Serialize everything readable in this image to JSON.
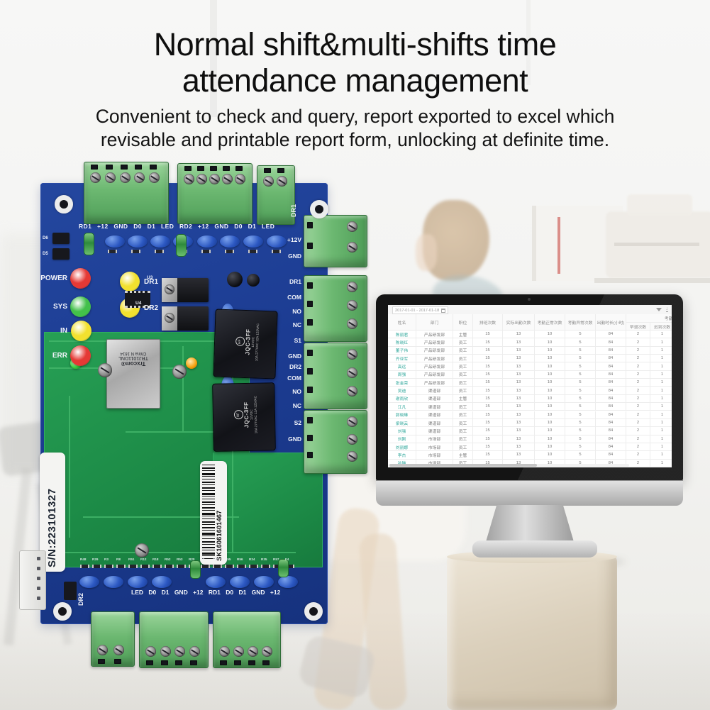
{
  "header": {
    "title_line1": "Normal shift&multi-shifts time",
    "title_line2": "attendance management",
    "subtitle_line1": "Convenient to check and query, report exported to excel which",
    "subtitle_line2": "revisable and printable report form, unlocking at definite time."
  },
  "board": {
    "status_leds": [
      {
        "label": "POWER",
        "color": "#e53935"
      },
      {
        "label": "SYS",
        "color": "#43c04a"
      },
      {
        "label": "IN",
        "color": "#f2e12f"
      },
      {
        "label": "ERR",
        "color": "#e53935"
      }
    ],
    "door_leds": [
      {
        "label": "DR1",
        "color": "#f2e12f"
      },
      {
        "label": "DR2",
        "color": "#f2e12f"
      }
    ],
    "silkscreen_top": "RD1 +12 GND D0 D1 LED RD2 +12 GND D0 D1 LED",
    "silkscreen_bottom": "LED D0 D1 GND +12 RD1 D0 D1 GND +12",
    "label_dr2_vertical": "DR2",
    "label_dr1_vertical": "DR1",
    "right_edge_labels": [
      "+12V",
      "GND",
      "DR1",
      "COM",
      "NO",
      "NC",
      "S1",
      "GND",
      "DR2",
      "COM",
      "NO",
      "NC",
      "S2",
      "GND"
    ],
    "ic_labels": [
      "U3",
      "U4"
    ],
    "jumper_labels": [
      "D6",
      "D5"
    ],
    "relay": {
      "brand": "HF",
      "model": "JQC-3FF",
      "spec1": "12VDC",
      "spec2": "10A 277VAC 12A 125VAC"
    },
    "ethernet": {
      "brand": "Trxcom®",
      "model": "TRJ1011DNL",
      "origin": "China N 1614"
    },
    "sn_sticker": "S/N:223101327",
    "barcode_sticker": "SK16061601467",
    "resistor_refs": [
      "R48",
      "R29",
      "R3",
      "R8",
      "R51",
      "R12",
      "R18",
      "R52",
      "R53",
      "R20",
      "F3",
      "R21",
      "R55",
      "R56",
      "R24",
      "R35",
      "R57",
      "F4"
    ]
  },
  "monitor": {
    "toolbar": {
      "date_range": "2017-01-01 - 2017-01-18"
    },
    "table": {
      "columns": [
        "姓名",
        "部门",
        "职位",
        "排班次数",
        "实际出勤次数",
        "考勤正常次数",
        "考勤异常次数",
        "出勤时长(小时)"
      ],
      "group_header": "考勤异常",
      "sub_columns": [
        "早退次数",
        "迟到次数",
        "缺勤次数",
        "旷工"
      ],
      "rows": [
        {
          "name": "陈丽君",
          "dept": "产品研发部",
          "pos": "主管",
          "values": [
            15,
            13,
            10,
            5,
            84,
            2,
            1,
            2
          ]
        },
        {
          "name": "陈晓红",
          "dept": "产品研发部",
          "pos": "员工",
          "values": [
            15,
            13,
            10,
            5,
            84,
            2,
            1,
            2
          ]
        },
        {
          "name": "董子伟",
          "dept": "产品研发部",
          "pos": "员工",
          "values": [
            15,
            13,
            10,
            5,
            84,
            2,
            1,
            2
          ]
        },
        {
          "name": "齐亚军",
          "dept": "产品研发部",
          "pos": "员工",
          "values": [
            15,
            13,
            10,
            5,
            84,
            2,
            1,
            2
          ]
        },
        {
          "name": "高远",
          "dept": "产品研发部",
          "pos": "员工",
          "values": [
            15,
            13,
            10,
            5,
            84,
            2,
            1,
            2
          ]
        },
        {
          "name": "周强",
          "dept": "产品研发部",
          "pos": "员工",
          "values": [
            15,
            13,
            10,
            5,
            84,
            2,
            1,
            2
          ]
        },
        {
          "name": "张金荣",
          "dept": "产品研发部",
          "pos": "员工",
          "values": [
            15,
            13,
            10,
            5,
            84,
            2,
            1,
            2
          ]
        },
        {
          "name": "吴迪",
          "dept": "渠道部",
          "pos": "员工",
          "values": [
            15,
            13,
            10,
            5,
            84,
            2,
            1,
            2
          ]
        },
        {
          "name": "谢雨欣",
          "dept": "渠道部",
          "pos": "主管",
          "values": [
            15,
            13,
            10,
            5,
            84,
            2,
            1,
            2
          ]
        },
        {
          "name": "江凡",
          "dept": "渠道部",
          "pos": "员工",
          "values": [
            15,
            13,
            10,
            5,
            84,
            2,
            1,
            2
          ]
        },
        {
          "name": "郭晓琳",
          "dept": "渠道部",
          "pos": "员工",
          "values": [
            15,
            13,
            10,
            5,
            84,
            2,
            1,
            2
          ]
        },
        {
          "name": "梁晓云",
          "dept": "渠道部",
          "pos": "员工",
          "values": [
            15,
            13,
            10,
            5,
            84,
            2,
            1,
            2
          ]
        },
        {
          "name": "刘强",
          "dept": "渠道部",
          "pos": "员工",
          "values": [
            15,
            13,
            10,
            5,
            84,
            2,
            1,
            2
          ]
        },
        {
          "name": "刘刚",
          "dept": "市场部",
          "pos": "员工",
          "values": [
            15,
            13,
            10,
            5,
            84,
            2,
            1,
            2
          ]
        },
        {
          "name": "刘丽娜",
          "dept": "市场部",
          "pos": "员工",
          "values": [
            15,
            13,
            10,
            5,
            84,
            2,
            1,
            2
          ]
        },
        {
          "name": "李杰",
          "dept": "市场部",
          "pos": "主管",
          "values": [
            15,
            13,
            10,
            5,
            84,
            2,
            1,
            2
          ]
        },
        {
          "name": "孙琳",
          "dept": "市场部",
          "pos": "员工",
          "values": [
            15,
            13,
            10,
            5,
            84,
            2,
            1,
            2
          ]
        },
        {
          "name": "陈飞",
          "dept": "市场部",
          "pos": "员工",
          "values": [
            15,
            13,
            10,
            5,
            84,
            2,
            1,
            2
          ]
        }
      ]
    }
  }
}
